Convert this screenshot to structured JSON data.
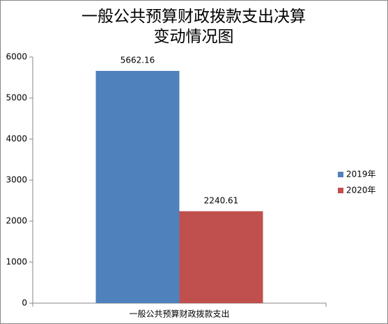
{
  "chart_data": {
    "type": "bar",
    "title": "一般公共预算财政拨款支出决算变动情况图",
    "categories": [
      "一般公共预算财政拨款支出"
    ],
    "series": [
      {
        "name": "2019年",
        "color": "#4f81bd",
        "values": [
          5662.16
        ]
      },
      {
        "name": "2020年",
        "color": "#c0504d",
        "values": [
          2240.61
        ]
      }
    ],
    "ylim": [
      0,
      6000
    ],
    "yticks": [
      0,
      1000,
      2000,
      3000,
      4000,
      5000,
      6000
    ],
    "grid": false,
    "legend": "right"
  }
}
